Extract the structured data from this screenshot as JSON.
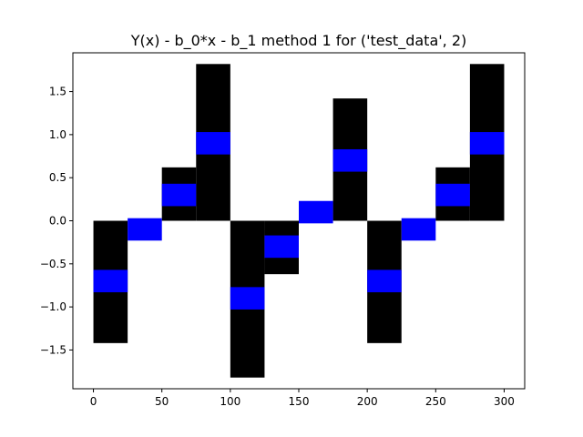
{
  "chart_data": {
    "type": "bar",
    "title": "Y(x) - b_0*x - b_1 method 1 for ('test_data', 2)",
    "xlabel": "",
    "ylabel": "",
    "xlim": [
      -15,
      315
    ],
    "ylim": [
      -1.95,
      1.95
    ],
    "x_ticks": [
      0,
      50,
      100,
      150,
      200,
      250,
      300
    ],
    "y_ticks": [
      -1.5,
      -1.0,
      -0.5,
      0.0,
      0.5,
      1.0,
      1.5
    ],
    "x_tick_labels": [
      "0",
      "50",
      "100",
      "150",
      "200",
      "250",
      "300"
    ],
    "y_tick_labels": [
      "−1.5",
      "−1.0",
      "−0.5",
      "0.0",
      "0.5",
      "1.0",
      "1.5"
    ],
    "bar_width": 25,
    "grid": false,
    "series": [
      {
        "color": "#000000",
        "x": [
          0,
          25,
          50,
          75,
          100,
          125,
          150,
          175,
          200,
          225,
          250,
          275
        ],
        "values": [
          -1.42,
          0.0,
          0.62,
          1.82,
          -1.82,
          -0.62,
          0.0,
          1.42,
          -1.42,
          0.0,
          0.62,
          1.82
        ]
      }
    ],
    "highlights": {
      "color": "#0000ff",
      "x": [
        0,
        25,
        50,
        75,
        100,
        125,
        150,
        175,
        200,
        225,
        250,
        275
      ],
      "y_center": [
        -0.7,
        -0.1,
        0.3,
        0.9,
        -0.9,
        -0.3,
        0.1,
        0.7,
        -0.7,
        -0.1,
        0.3,
        0.9
      ],
      "height": 0.26
    }
  }
}
